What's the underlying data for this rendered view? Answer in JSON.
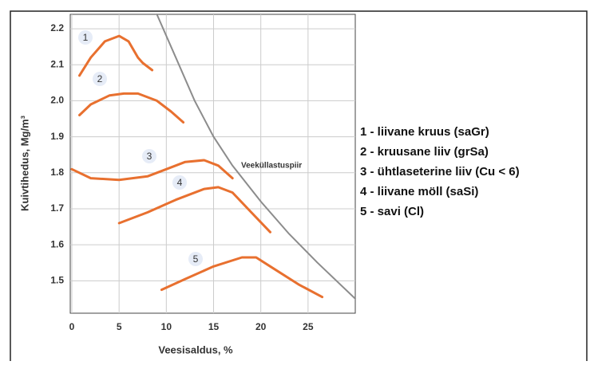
{
  "chart_data": {
    "type": "line",
    "xlabel": "Veesisaldus, %",
    "ylabel": "Kuivtihedus, Mg/m³",
    "xlim": [
      0,
      30
    ],
    "xticks": [
      0,
      5,
      10,
      15,
      20,
      25
    ],
    "ylim": [
      1.41,
      2.24
    ],
    "yticks": [
      1.5,
      1.6,
      1.7,
      1.8,
      1.9,
      {
        "value": 2,
        "label": "2.0"
      },
      2.1,
      2.2
    ],
    "grid": true,
    "series": [
      {
        "name": "1 - liivane kruus (saGr)",
        "label": "1",
        "color": "#e8702f",
        "x": [
          0.8,
          2,
          3.5,
          5,
          6,
          7,
          7.5,
          8.5
        ],
        "values": [
          2.07,
          2.12,
          2.165,
          2.18,
          2.165,
          2.12,
          2.105,
          2.085
        ]
      },
      {
        "name": "2 - kruusane liiv (grSa)",
        "label": "2",
        "color": "#e8702f",
        "x": [
          0.8,
          2,
          4,
          5.5,
          7,
          9,
          10.5,
          11.8
        ],
        "values": [
          1.96,
          1.99,
          2.015,
          2.02,
          2.02,
          2.0,
          1.97,
          1.94
        ]
      },
      {
        "name": "3 - ühtlaseterine liiv (Cu < 6)",
        "label": "3",
        "color": "#e8702f",
        "x": [
          0,
          2,
          5,
          8,
          10,
          12,
          14,
          15.5,
          17
        ],
        "values": [
          1.81,
          1.785,
          1.78,
          1.79,
          1.81,
          1.83,
          1.835,
          1.82,
          1.785
        ]
      },
      {
        "name": "4 - liivane möll (saSi)",
        "label": "4",
        "color": "#e8702f",
        "x": [
          5,
          8,
          11,
          14,
          15.5,
          17,
          19,
          21
        ],
        "values": [
          1.66,
          1.69,
          1.725,
          1.755,
          1.76,
          1.745,
          1.69,
          1.635
        ]
      },
      {
        "name": "5 - savi (Cl)",
        "label": "5",
        "color": "#e8702f",
        "x": [
          9.5,
          12,
          15,
          18,
          19.5,
          21,
          24,
          26.5
        ],
        "values": [
          1.475,
          1.505,
          1.54,
          1.565,
          1.565,
          1.54,
          1.49,
          1.455
        ]
      }
    ],
    "saturation_line": {
      "name": "Veeküllastuspiir",
      "color": "#8c8c8c",
      "x": [
        9,
        11,
        13,
        15,
        17,
        20,
        23,
        26,
        30
      ],
      "values": [
        2.24,
        2.12,
        2.0,
        1.9,
        1.82,
        1.72,
        1.63,
        1.55,
        1.45
      ]
    }
  }
}
